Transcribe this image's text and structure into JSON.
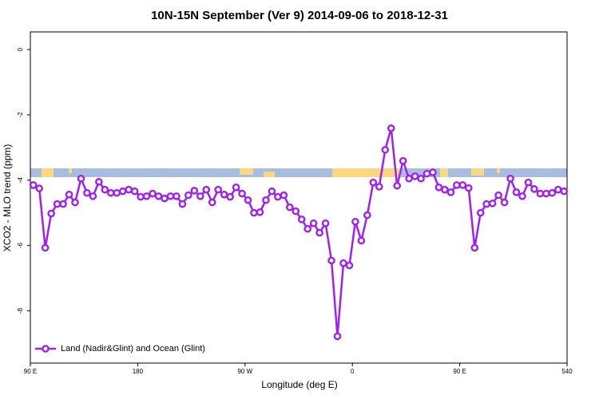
{
  "chart_data": {
    "type": "line",
    "title": "10N-15N September (Ver 9)   2014-09-06 to 2018-12-31",
    "xlabel": "Longitude (deg E)",
    "ylabel": "XCO2 - MLO trend (ppm)",
    "xlim": [
      90,
      540
    ],
    "ylim": [
      -9.6,
      0.54
    ],
    "xticks": [
      {
        "value": 90,
        "label": "90 E"
      },
      180,
      {
        "value": 270,
        "label": "90 W"
      },
      {
        "value": 360,
        "label": "0"
      },
      {
        "value": 450,
        "label": "90 E"
      },
      540
    ],
    "yticks": [
      0,
      -2,
      -4,
      -6,
      -8
    ],
    "legend": "bottom left",
    "x": [
      92.5,
      97.5,
      102.5,
      107.5,
      112.5,
      117.5,
      122.5,
      127.5,
      132.5,
      137.5,
      142.5,
      147.5,
      152.5,
      157.5,
      162.5,
      167.5,
      172.5,
      177.5,
      182.5,
      187.5,
      192.5,
      197.5,
      202.5,
      207.5,
      212.5,
      217.5,
      222.5,
      227.5,
      232.5,
      237.5,
      242.5,
      247.5,
      252.5,
      257.5,
      262.5,
      267.5,
      272.5,
      277.5,
      282.5,
      287.5,
      292.5,
      297.5,
      302.5,
      307.5,
      312.5,
      317.5,
      322.5,
      327.5,
      332.5,
      337.5,
      342.5,
      347.5,
      352.5,
      357.5,
      362.5,
      367.5,
      372.5,
      377.5,
      382.5,
      387.5,
      392.5,
      397.5,
      402.5,
      407.5,
      412.5,
      417.5,
      422.5,
      427.5,
      432.5,
      437.5,
      442.5,
      447.5,
      452.5,
      457.5,
      462.5,
      467.5,
      472.5,
      477.5,
      482.5,
      487.5,
      492.5,
      497.5,
      502.5,
      507.5,
      512.5,
      517.5,
      522.5,
      527.5,
      532.5,
      537.5
    ],
    "series": [
      {
        "name": "Land (Nadir&Glint) and Ocean (Glint)",
        "color": "#a020f0",
        "values": [
          -4.15,
          -4.25,
          -6.07,
          -5.02,
          -4.73,
          -4.73,
          -4.44,
          -4.68,
          -3.95,
          -4.39,
          -4.49,
          -4.05,
          -4.29,
          -4.39,
          -4.39,
          -4.34,
          -4.29,
          -4.34,
          -4.51,
          -4.49,
          -4.41,
          -4.49,
          -4.56,
          -4.49,
          -4.49,
          -4.73,
          -4.46,
          -4.32,
          -4.49,
          -4.29,
          -4.68,
          -4.29,
          -4.44,
          -4.51,
          -4.22,
          -4.41,
          -4.61,
          -5.0,
          -4.98,
          -4.61,
          -4.34,
          -4.51,
          -4.46,
          -4.83,
          -4.95,
          -5.2,
          -5.49,
          -5.32,
          -5.61,
          -5.32,
          -6.46,
          -8.78,
          -6.54,
          -6.61,
          -5.27,
          -5.85,
          -5.07,
          -4.07,
          -4.2,
          -3.07,
          -2.41,
          -4.17,
          -3.41,
          -3.95,
          -3.88,
          -3.95,
          -3.8,
          -3.76,
          -4.22,
          -4.29,
          -4.37,
          -4.15,
          -4.15,
          -4.24,
          -6.07,
          -5.0,
          -4.73,
          -4.71,
          -4.46,
          -4.68,
          -3.95,
          -4.37,
          -4.49,
          -4.07,
          -4.27,
          -4.41,
          -4.41,
          -4.39,
          -4.29,
          -4.34
        ]
      }
    ]
  }
}
